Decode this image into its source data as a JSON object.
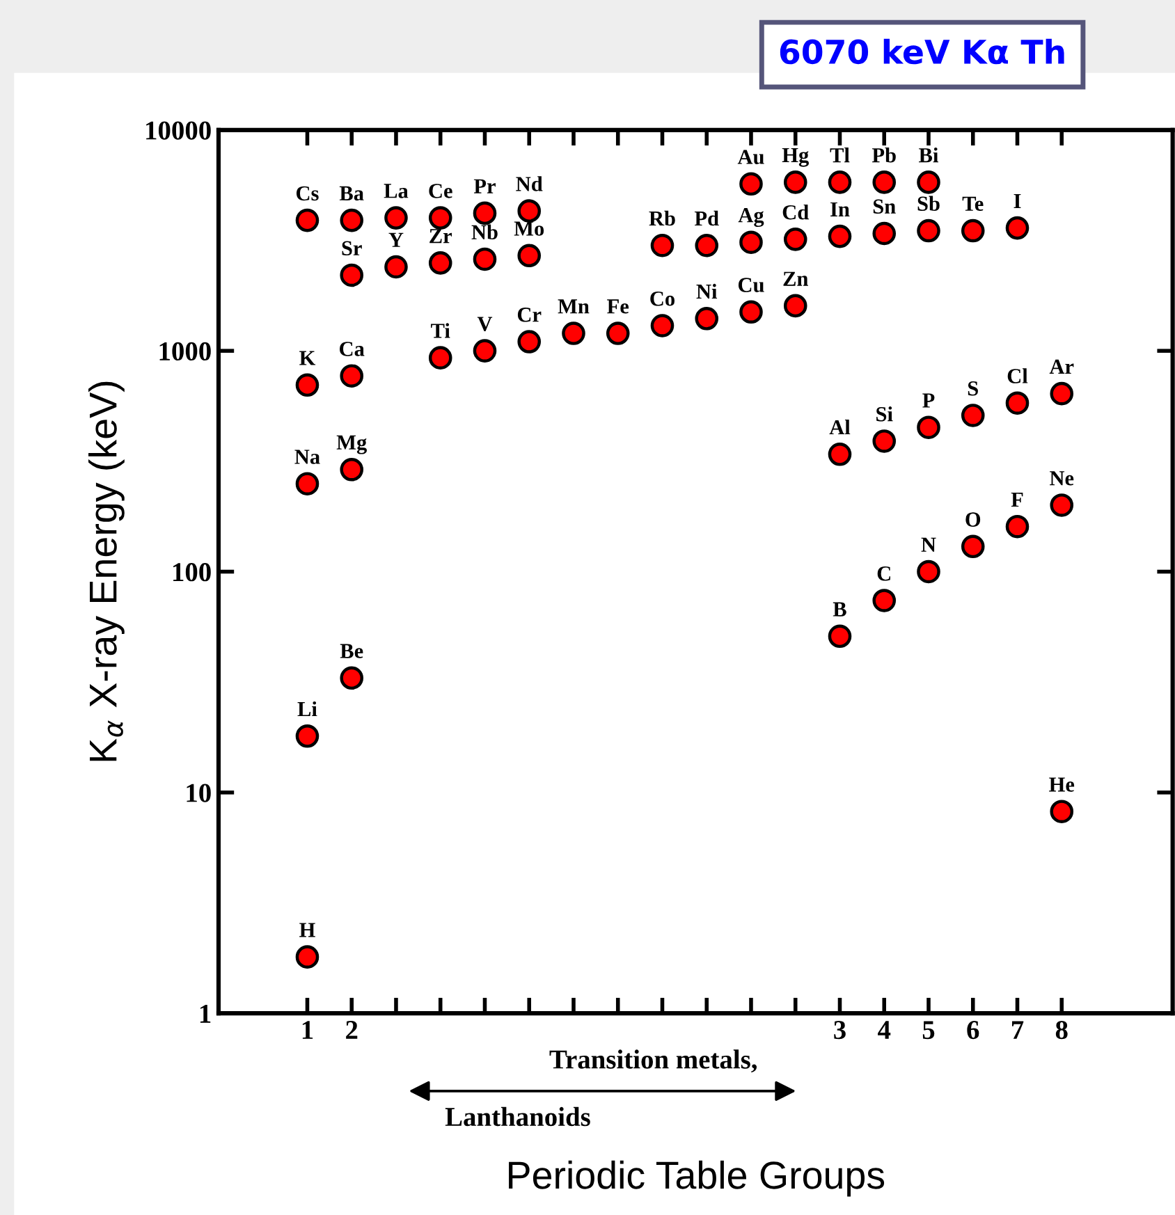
{
  "chart_data": {
    "type": "scatter",
    "xlabel": "Periodic Table Groups",
    "ylabel": "K$_{α}$ X-ray Energy (keV)",
    "log": "y",
    "grid": false,
    "legend": false,
    "marker": "circle",
    "categories": [
      "1",
      "2",
      null,
      null,
      null,
      null,
      null,
      null,
      null,
      null,
      null,
      null,
      "3",
      "4",
      "5",
      "6",
      "7",
      "8"
    ],
    "ylim": [
      1,
      10000
    ],
    "yticks": [
      1,
      10,
      100,
      1000,
      10000
    ],
    "series": [
      {
        "color": "#ff0000",
        "values": [
          1.8,
          null,
          null,
          null,
          null,
          null,
          null,
          null,
          null,
          null,
          null,
          null,
          null,
          null,
          null,
          null,
          null,
          8.2
        ],
        "value_labels": [
          "H",
          null,
          null,
          null,
          null,
          null,
          null,
          null,
          null,
          null,
          null,
          null,
          null,
          null,
          null,
          null,
          null,
          "He"
        ]
      },
      {
        "color": "#ff0000",
        "values": [
          18,
          33,
          null,
          null,
          null,
          null,
          null,
          null,
          null,
          null,
          null,
          null,
          51,
          74,
          100,
          130,
          160,
          200
        ],
        "value_labels": [
          "Li",
          "Be",
          null,
          null,
          null,
          null,
          null,
          null,
          null,
          null,
          null,
          null,
          "B",
          "C",
          "N",
          "O",
          "F",
          "Ne"
        ]
      },
      {
        "color": "#ff0000",
        "values": [
          250,
          290,
          null,
          null,
          null,
          null,
          null,
          null,
          null,
          null,
          null,
          null,
          340,
          390,
          450,
          510,
          580,
          640
        ],
        "value_labels": [
          "Na",
          "Mg",
          null,
          null,
          null,
          null,
          null,
          null,
          null,
          null,
          null,
          null,
          "Al",
          "Si",
          "P",
          "S",
          "Cl",
          "Ar"
        ]
      },
      {
        "color": "#ff0000",
        "values": [
          700,
          770,
          null,
          930,
          1000,
          1100,
          1200,
          1200,
          1300,
          1400,
          1500,
          1600,
          null,
          null,
          null,
          null,
          null,
          null
        ],
        "value_labels": [
          "K",
          "Ca",
          null,
          "Ti",
          "V",
          "Cr",
          "Mn",
          "Fe",
          "Co",
          "Ni",
          "Cu",
          "Zn",
          null,
          null,
          null,
          null,
          null,
          null
        ]
      },
      {
        "color": "#ff0000",
        "values": [
          null,
          2200,
          2400,
          2500,
          2600,
          2700,
          null,
          null,
          3000,
          3000,
          3100,
          3200,
          3300,
          3400,
          3500,
          3500,
          3600,
          null
        ],
        "value_labels": [
          null,
          "Sr",
          "Y",
          "Zr",
          "Nb",
          "Mo",
          null,
          null,
          "Rb",
          "Pd",
          "Ag",
          "Cd",
          "In",
          "Sn",
          "Sb",
          "Te",
          "I",
          null
        ]
      },
      {
        "color": "#ff0000",
        "values": [
          3900,
          3900,
          4000,
          4000,
          4200,
          4300,
          null,
          null,
          null,
          null,
          5700,
          5800,
          5800,
          5800,
          5800,
          null,
          null,
          null
        ],
        "value_labels": [
          "Cs",
          "Ba",
          "La",
          "Ce",
          "Pr",
          "Nd",
          null,
          null,
          null,
          null,
          "Au",
          "Hg",
          "Tl",
          "Pb",
          "Bi",
          null,
          null,
          null
        ]
      }
    ],
    "annotations": [
      "6070 keV Kα Th",
      "Transition metals,\nLanthanoids"
    ]
  }
}
